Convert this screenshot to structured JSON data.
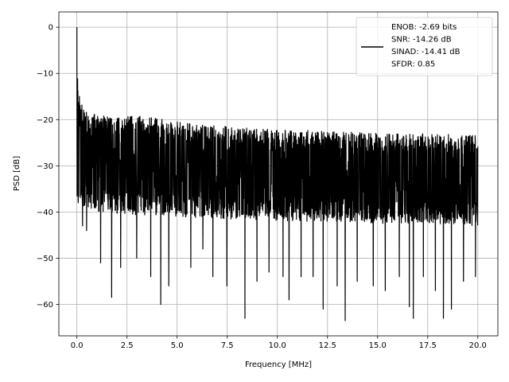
{
  "chart_data": {
    "type": "line",
    "xlabel": "Frequency [MHz]",
    "ylabel": "PSD [dB]",
    "xlim": [
      -0.9,
      21.0
    ],
    "ylim": [
      -66.8,
      3.3
    ],
    "xticks": [
      0.0,
      2.5,
      5.0,
      7.5,
      10.0,
      12.5,
      15.0,
      17.5,
      20.0
    ],
    "xtick_labels": [
      "0.0",
      "2.5",
      "5.0",
      "7.5",
      "10.0",
      "12.5",
      "15.0",
      "17.5",
      "20.0"
    ],
    "yticks": [
      0,
      -10,
      -20,
      -30,
      -40,
      -50,
      -60
    ],
    "ytick_labels": [
      "0",
      "−10",
      "−20",
      "−30",
      "−40",
      "−50",
      "−60"
    ],
    "grid": true,
    "legend_position": "top-right",
    "series": [
      {
        "color": "#000000",
        "peak": {
          "x": 0.0,
          "y": 0.0
        },
        "upper_envelope": {
          "x": [
            0.0,
            0.05,
            0.15,
            0.3,
            0.6,
            1.0,
            2.0,
            3.0,
            5.0,
            7.5,
            10.0,
            12.5,
            15.0,
            17.5,
            20.0
          ],
          "y": [
            0.0,
            -13.0,
            -15.5,
            -17.0,
            -18.5,
            -19.0,
            -19.5,
            -19.0,
            -20.5,
            -21.5,
            -22.0,
            -22.5,
            -23.0,
            -23.0,
            -23.5
          ]
        },
        "body_lower": {
          "x": [
            0.0,
            1.0,
            2.5,
            5.0,
            7.5,
            10.0,
            12.5,
            15.0,
            17.5,
            20.0
          ],
          "y": [
            -38.0,
            -40.0,
            -40.5,
            -41.0,
            -41.5,
            -42.0,
            -42.0,
            -42.5,
            -42.5,
            -43.0
          ]
        },
        "deep_dips": [
          {
            "x": 0.3,
            "y": -43.0
          },
          {
            "x": 0.5,
            "y": -44.0
          },
          {
            "x": 1.2,
            "y": -51.0
          },
          {
            "x": 1.75,
            "y": -58.5
          },
          {
            "x": 2.2,
            "y": -52.0
          },
          {
            "x": 3.0,
            "y": -50.0
          },
          {
            "x": 3.7,
            "y": -54.0
          },
          {
            "x": 4.2,
            "y": -60.0
          },
          {
            "x": 4.6,
            "y": -56.0
          },
          {
            "x": 5.7,
            "y": -52.0
          },
          {
            "x": 6.3,
            "y": -48.0
          },
          {
            "x": 6.8,
            "y": -54.0
          },
          {
            "x": 7.5,
            "y": -56.0
          },
          {
            "x": 8.4,
            "y": -63.0
          },
          {
            "x": 9.0,
            "y": -55.0
          },
          {
            "x": 9.6,
            "y": -53.0
          },
          {
            "x": 10.3,
            "y": -54.0
          },
          {
            "x": 10.6,
            "y": -59.0
          },
          {
            "x": 11.2,
            "y": -54.0
          },
          {
            "x": 11.8,
            "y": -54.0
          },
          {
            "x": 12.3,
            "y": -61.0
          },
          {
            "x": 13.0,
            "y": -56.0
          },
          {
            "x": 13.4,
            "y": -63.5
          },
          {
            "x": 14.0,
            "y": -55.0
          },
          {
            "x": 14.8,
            "y": -56.0
          },
          {
            "x": 15.4,
            "y": -57.0
          },
          {
            "x": 16.1,
            "y": -54.0
          },
          {
            "x": 16.6,
            "y": -60.5
          },
          {
            "x": 16.8,
            "y": -63.0
          },
          {
            "x": 17.3,
            "y": -54.0
          },
          {
            "x": 17.9,
            "y": -57.0
          },
          {
            "x": 18.3,
            "y": -63.0
          },
          {
            "x": 18.7,
            "y": -61.0
          },
          {
            "x": 19.3,
            "y": -55.0
          },
          {
            "x": 19.9,
            "y": -54.0
          }
        ]
      }
    ],
    "legend_lines": [
      "ENOB: -2.69 bits",
      "SNR: -14.26 dB",
      "SINAD: -14.41 dB",
      "SFDR: 0.85"
    ]
  }
}
